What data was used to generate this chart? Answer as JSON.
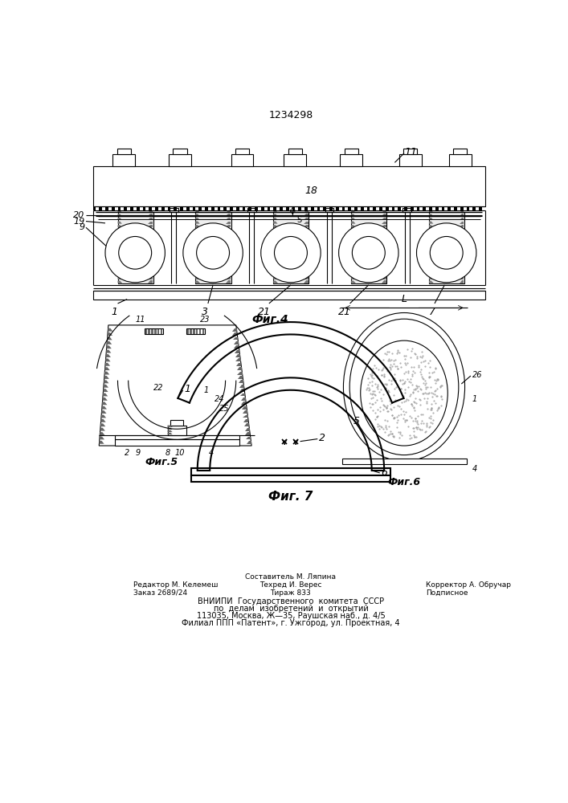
{
  "title": "1234298",
  "fig4_label": "Фиг.4",
  "fig5_label": "Фиг.5",
  "fig6_label": "Фиг.6",
  "fig7_label": "Фиг. 7",
  "bg_color": "#ffffff",
  "line_color": "#000000",
  "footer_line0": "Составитель М. Ляпина",
  "footer_line1_left": "Редактор М. Келемеш",
  "footer_line1_center": "Техред И. Верес",
  "footer_line1_right": "Корректор А. Обручар",
  "footer_line2_left": "Заказ 2689/24",
  "footer_line2_center": "Тираж 833",
  "footer_line2_right": "Подписное",
  "footer_line3": "ВНИИПИ  Государственного  комитета  СССР",
  "footer_line4": "по  делам  изобретений  и  открытий",
  "footer_line5": "113035, Москва, Ж—35, Раушская наб., д. 4/5",
  "footer_line6": "Филиал ППП «Патент», г. Ужгород, ул. Проектная, 4"
}
